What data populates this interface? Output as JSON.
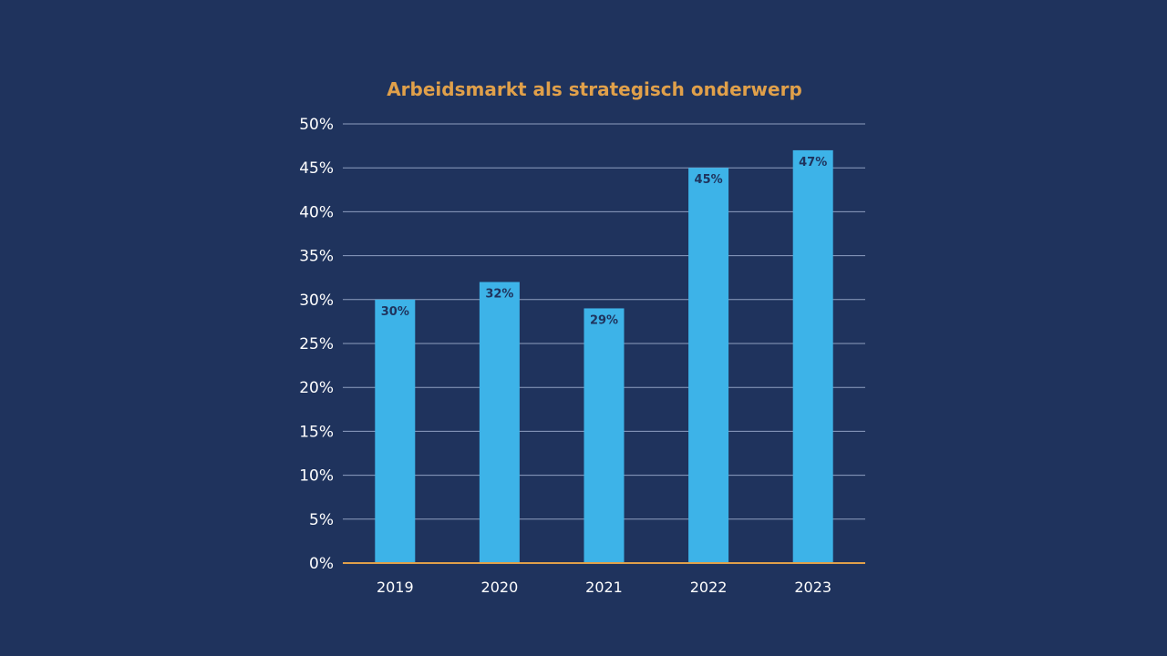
{
  "chart_data": {
    "type": "bar",
    "title": "Arbeidsmarkt als strategisch onderwerp",
    "categories": [
      "2019",
      "2020",
      "2021",
      "2022",
      "2023"
    ],
    "values": [
      30,
      32,
      29,
      45,
      47
    ],
    "data_labels": [
      "30%",
      "32%",
      "29%",
      "45%",
      "47%"
    ],
    "xlabel": "",
    "ylabel": "",
    "ylim": [
      0,
      50
    ],
    "yticks": [
      0,
      5,
      10,
      15,
      20,
      25,
      30,
      35,
      40,
      45,
      50
    ],
    "ytick_labels": [
      "0%",
      "5%",
      "10%",
      "15%",
      "20%",
      "25%",
      "30%",
      "35%",
      "40%",
      "45%",
      "50%"
    ],
    "grid": true,
    "legend": "none",
    "colors": {
      "background": "#1f335d",
      "bar": "#3db3e8",
      "title": "#e0a04a",
      "axis": "#e0a04a",
      "grid": "#8f9fc0"
    }
  }
}
